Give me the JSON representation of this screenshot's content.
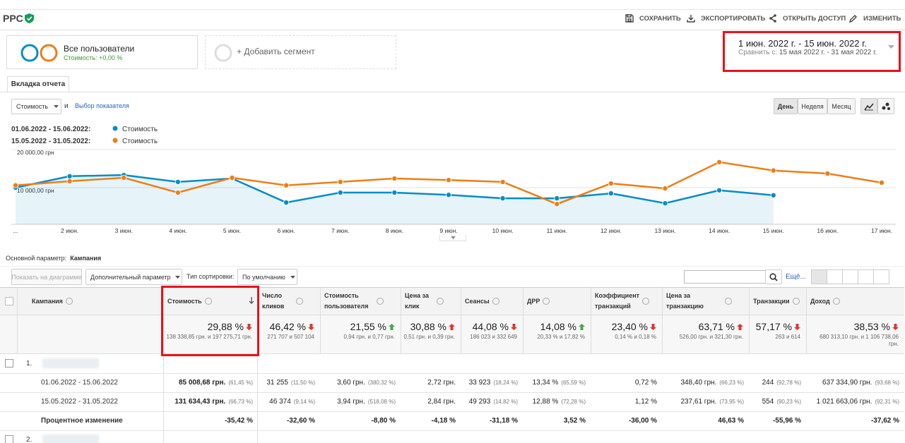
{
  "header": {
    "title": "PPC",
    "actions": [
      "СОХРАНИТЬ",
      "ЭКСПОРТИРОВАТЬ",
      "ОТКРЫТЬ ДОСТУП",
      "ИЗМЕНИТЬ"
    ]
  },
  "segments": {
    "items": [
      {
        "name": "Все пользователи",
        "detail": "Стоимость: +0,00 %"
      }
    ],
    "add": "+ Добавить сегмент"
  },
  "date_range": {
    "current": "1 июн. 2022 г. - 15 июн. 2022 г.",
    "compare_label": "Сравнить с:",
    "compare": "15 мая 2022 г. - 31 мая 2022 г."
  },
  "tab": "Вкладка отчета",
  "metric_picker": {
    "metric": "Стоимость",
    "conjunction": "и",
    "link": "Выбор показателя"
  },
  "granularity": {
    "options": [
      "День",
      "Неделя",
      "Месяц"
    ],
    "selected": 0
  },
  "chart_data": {
    "type": "line",
    "categories": [
      "...",
      "2 июн.",
      "3 июн.",
      "4 июн.",
      "5 июн.",
      "6 июн.",
      "7 июн.",
      "8 июн.",
      "9 июн.",
      "10 июн.",
      "11 июн.",
      "12 июн.",
      "13 июн.",
      "14 июн.",
      "15 июн.",
      "16 июн.",
      "17 июн."
    ],
    "series": [
      {
        "period": "01.06.2022 - 15.06.2022:",
        "name": "Стоимость",
        "color": "#058dc7",
        "area": true,
        "values": [
          10000,
          13000,
          13300,
          11500,
          12400,
          6100,
          8700,
          8700,
          8100,
          7200,
          7200,
          8500,
          5900,
          9300,
          8000,
          null,
          null
        ]
      },
      {
        "period": "15.05.2022 - 31.05.2022:",
        "name": "Стоимость",
        "color": "#ed7e17",
        "area": false,
        "values": [
          10600,
          11700,
          12600,
          8700,
          12600,
          10600,
          11500,
          12400,
          12000,
          11500,
          5700,
          11100,
          9800,
          16700,
          14500,
          13700,
          11300
        ]
      }
    ],
    "ylim": [
      0,
      20000
    ],
    "yticks": [
      {
        "value": 20000,
        "label": "20 000,00 грн"
      },
      {
        "value": 10000,
        "label": "10 000,00 грн"
      }
    ],
    "grid": true
  },
  "primary_dimension": {
    "label": "Основной параметр:",
    "value": "Кампания"
  },
  "toolbar": {
    "plot_rows": "Показать на диаграмме",
    "secondary": "Дополнительный параметр",
    "sort_label": "Тип сортировки:",
    "sort": "По умолчанию",
    "more": "Ещё..."
  },
  "table": {
    "columns": [
      "Кампания",
      "Стоимость",
      "Число кликов",
      "Стоимость пользователя",
      "Цена за клик",
      "Сеансы",
      "ДРР",
      "Коэффициент транзакций",
      "Цена за транзакцию",
      "Транзакции",
      "Доход"
    ],
    "totals": [
      {
        "change": "29,88 %",
        "arrow_dir": "down",
        "arrow_color": "#e2352c",
        "detail": "138 338,85 грн. и 197 275,71 грн."
      },
      {
        "change": "46,42 %",
        "arrow_dir": "down",
        "arrow_color": "#e2352c",
        "detail": "271 707 и 507 104"
      },
      {
        "change": "21,55 %",
        "arrow_dir": "up",
        "arrow_color": "#45a842",
        "detail": "0,94 грн. и 0,77 грн."
      },
      {
        "change": "30,88 %",
        "arrow_dir": "up",
        "arrow_color": "#e2352c",
        "detail": "0,51 грн. и 0,39 грн."
      },
      {
        "change": "44,08 %",
        "arrow_dir": "down",
        "arrow_color": "#e2352c",
        "detail": "186 023 и 332 649"
      },
      {
        "change": "14,08 %",
        "arrow_dir": "up",
        "arrow_color": "#45a842",
        "detail": "20,33 % и 17,82 %"
      },
      {
        "change": "23,40 %",
        "arrow_dir": "down",
        "arrow_color": "#e2352c",
        "detail": "0,14 % и 0,18 %"
      },
      {
        "change": "63,71 %",
        "arrow_dir": "up",
        "arrow_color": "#e2352c",
        "detail": "526,00 грн. и 321,30 грн."
      },
      {
        "change": "57,17 %",
        "arrow_dir": "down",
        "arrow_color": "#e2352c",
        "detail": "263 и 614"
      },
      {
        "change": "38,53 %",
        "arrow_dir": "down",
        "arrow_color": "#e2352c",
        "detail": "680 313,10 грн. и 1 106 738,06 грн."
      }
    ],
    "rows": [
      {
        "index": "1.",
        "periods": [
          {
            "label": "01.06.2022 - 15.06.2022",
            "cells": [
              {
                "value": "85 008,68 грн.",
                "share": "(61,45 %)"
              },
              {
                "value": "31 255",
                "share": "(11,50 %)"
              },
              {
                "value": "3,60 грн.",
                "share": "(380,32 %)"
              },
              {
                "value": "2,72 грн."
              },
              {
                "value": "33 923",
                "share": "(18,24 %)"
              },
              {
                "value": "13,34 %",
                "share": "(65,59 %)"
              },
              {
                "value": "0,72 %"
              },
              {
                "value": "348,40 грн.",
                "share": "(66,23 %)"
              },
              {
                "value": "244",
                "share": "(92,78 %)"
              },
              {
                "value": "637 334,90 грн.",
                "share": "(93,68 %)"
              }
            ]
          },
          {
            "label": "15.05.2022 - 31.05.2022",
            "cells": [
              {
                "value": "131 634,43 грн.",
                "share": "(66,73 %)"
              },
              {
                "value": "46 374",
                "share": "(9,14 %)"
              },
              {
                "value": "3,94 грн.",
                "share": "(518,08 %)"
              },
              {
                "value": "2,84 грн."
              },
              {
                "value": "49 293",
                "share": "(14,82 %)"
              },
              {
                "value": "12,88 %",
                "share": "(72,28 %)"
              },
              {
                "value": "1,12 %"
              },
              {
                "value": "237,61 грн.",
                "share": "(73,95 %)"
              },
              {
                "value": "554",
                "share": "(90,23 %)"
              },
              {
                "value": "1 021 663,06 грн.",
                "share": "(92,31 %)"
              }
            ]
          }
        ],
        "change": {
          "label": "Процентное изменение",
          "cells": [
            "-35,42 %",
            "-32,60 %",
            "-8,80 %",
            "-4,18 %",
            "-31,18 %",
            "3,52 %",
            "-36,00 %",
            "46,63 %",
            "-55,96 %",
            "-37,62 %"
          ]
        }
      },
      {
        "index": "2."
      }
    ]
  }
}
